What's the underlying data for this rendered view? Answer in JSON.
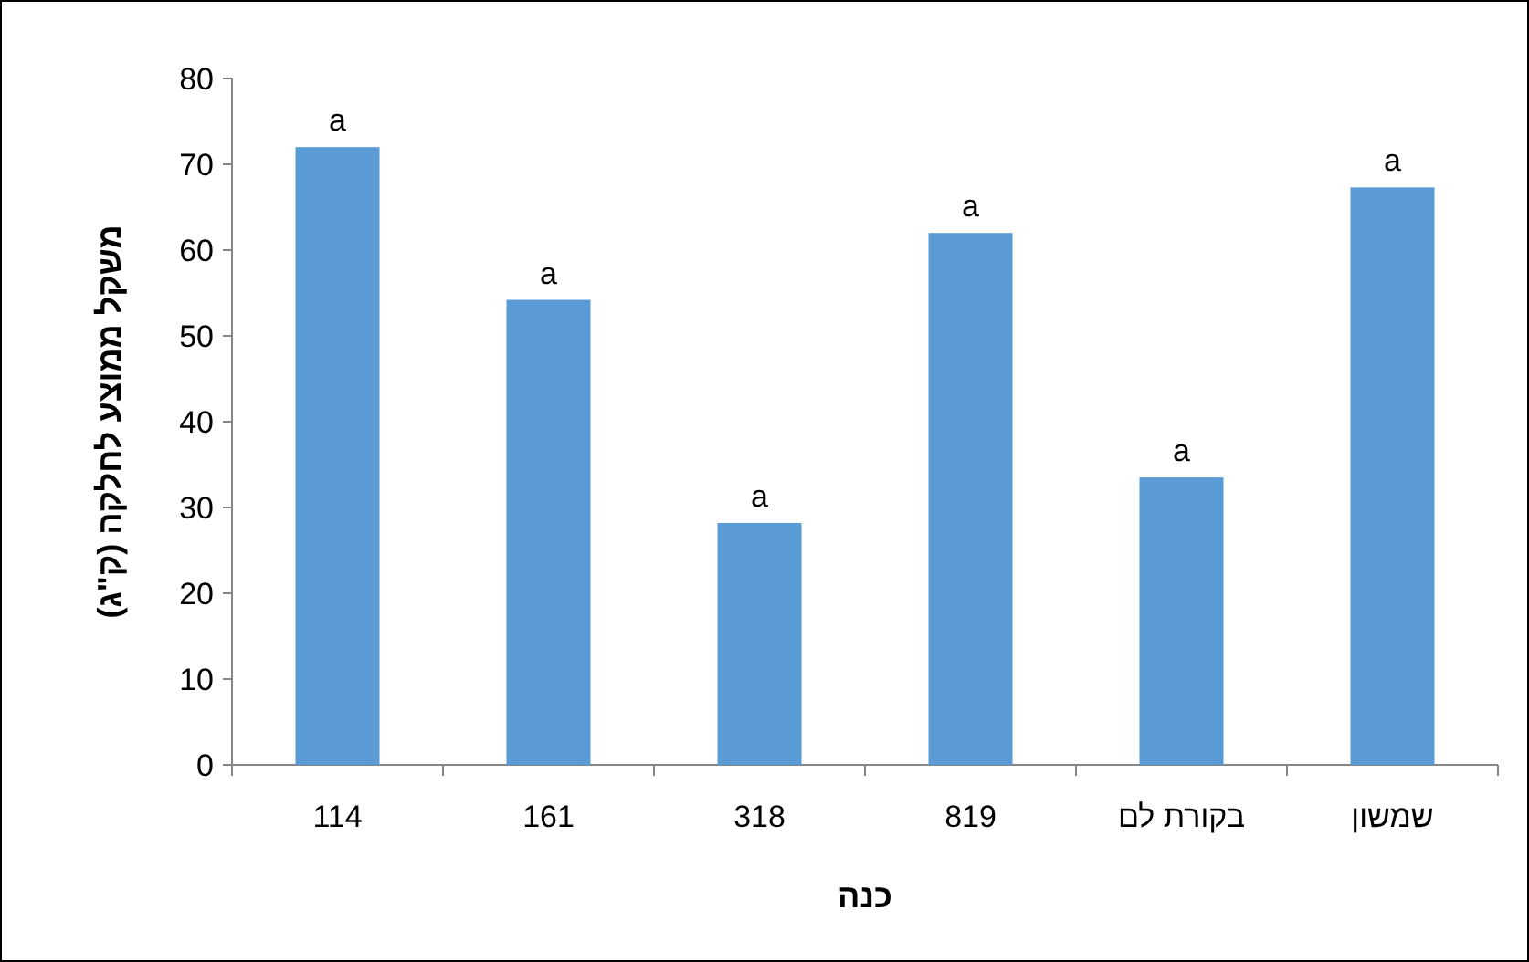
{
  "chart_data": {
    "type": "bar",
    "xlabel": "כנה",
    "ylabel": "משקל ממוצע לחלקה (ק\"ג)",
    "categories": [
      "114",
      "161",
      "318",
      "819",
      "בקורת לם",
      "שמשון"
    ],
    "values": [
      72,
      54.2,
      28.2,
      62,
      33.5,
      67.3
    ],
    "color": "#5b9bd5",
    "ylim": [
      0,
      80
    ],
    "yticks": [
      0,
      10,
      20,
      30,
      40,
      50,
      60,
      70,
      80
    ],
    "grid": false,
    "annotations": [
      {
        "text": "a",
        "x": "114",
        "y": 72
      },
      {
        "text": "a",
        "x": "161",
        "y": 54.2
      },
      {
        "text": "a",
        "x": "318",
        "y": 28.2
      },
      {
        "text": "a",
        "x": "819",
        "y": 62
      },
      {
        "text": "a",
        "x": "בקורת לם",
        "y": 33.5
      },
      {
        "text": "a",
        "x": "שמשון",
        "y": 67.3
      }
    ]
  }
}
